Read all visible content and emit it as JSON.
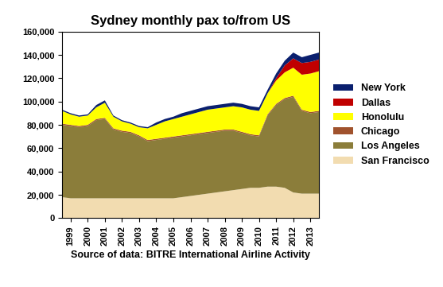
{
  "chart_data": {
    "type": "stacked_area",
    "title": "Sydney monthly pax to/from US",
    "x_label": "Source of data: BITRE International Airline Activity",
    "x": [
      1999,
      1999.5,
      2000,
      2000.5,
      2001,
      2001.5,
      2002,
      2002.5,
      2003,
      2003.5,
      2004,
      2004.5,
      2005,
      2005.5,
      2006,
      2006.5,
      2007,
      2007.5,
      2008,
      2008.5,
      2009,
      2009.5,
      2010,
      2010.5,
      2011,
      2011.5,
      2012,
      2012.5,
      2013,
      2013.5,
      2014
    ],
    "series": [
      {
        "name": "San Francisco",
        "color": "#f2dcb0",
        "values": [
          18000,
          17000,
          17000,
          17000,
          17000,
          17000,
          17000,
          17000,
          17000,
          17000,
          17000,
          17000,
          17000,
          17000,
          18000,
          19000,
          20000,
          21000,
          22000,
          23000,
          24000,
          25000,
          26000,
          26000,
          27000,
          27000,
          26000,
          22000,
          21000,
          21000,
          21000
        ]
      },
      {
        "name": "Los Angeles",
        "color": "#8b7d3a",
        "values": [
          62000,
          62000,
          61000,
          62000,
          67000,
          68000,
          59000,
          57000,
          56000,
          53000,
          49000,
          50000,
          51000,
          52000,
          52000,
          52000,
          52000,
          52000,
          52000,
          52000,
          51000,
          48000,
          45000,
          44000,
          61000,
          70000,
          76000,
          82000,
          71000,
          69000,
          70000
        ]
      },
      {
        "name": "Chicago",
        "color": "#a0522d",
        "values": [
          1000,
          1000,
          1000,
          1000,
          1000,
          1000,
          1000,
          1000,
          1000,
          1000,
          1000,
          1000,
          1000,
          1000,
          1000,
          1000,
          1000,
          1000,
          1000,
          1000,
          1000,
          1000,
          1000,
          1000,
          1000,
          1000,
          1000,
          1000,
          1000,
          1000,
          1000
        ]
      },
      {
        "name": "Honolulu",
        "color": "#ffff00",
        "values": [
          11000,
          9000,
          8000,
          8000,
          10000,
          13000,
          10000,
          8000,
          7000,
          7000,
          10000,
          12000,
          14000,
          15000,
          16000,
          17000,
          18000,
          19000,
          19000,
          19000,
          20000,
          21000,
          21000,
          21000,
          18000,
          20000,
          22000,
          24000,
          30000,
          33000,
          34000
        ]
      },
      {
        "name": "Dallas",
        "color": "#c00000",
        "values": [
          0,
          0,
          0,
          0,
          0,
          0,
          0,
          0,
          0,
          0,
          0,
          0,
          0,
          0,
          0,
          0,
          0,
          0,
          0,
          0,
          0,
          0,
          0,
          0,
          0,
          2000,
          6000,
          8000,
          10000,
          10000,
          10000
        ]
      },
      {
        "name": "New York",
        "color": "#0a1f6e",
        "values": [
          1000,
          1000,
          1000,
          1000,
          2000,
          2000,
          1000,
          1000,
          1000,
          1000,
          1000,
          2000,
          2000,
          2000,
          3000,
          3000,
          3000,
          3000,
          3000,
          3000,
          3000,
          3000,
          3000,
          3000,
          3000,
          4000,
          4000,
          5000,
          5000,
          6000,
          6000
        ]
      }
    ],
    "xlim": [
      1999,
      2014
    ],
    "xticks": [
      {
        "value": 1999.5,
        "label": "1999"
      },
      {
        "value": 2000.5,
        "label": "2000"
      },
      {
        "value": 2001.5,
        "label": "2001"
      },
      {
        "value": 2002.5,
        "label": "2002"
      },
      {
        "value": 2003.5,
        "label": "2003"
      },
      {
        "value": 2004.5,
        "label": "2004"
      },
      {
        "value": 2005.5,
        "label": "2005"
      },
      {
        "value": 2006.5,
        "label": "2006"
      },
      {
        "value": 2007.5,
        "label": "2007"
      },
      {
        "value": 2008.5,
        "label": "2008"
      },
      {
        "value": 2009.5,
        "label": "2009"
      },
      {
        "value": 2010.5,
        "label": "2010"
      },
      {
        "value": 2011.5,
        "label": "2011"
      },
      {
        "value": 2012.5,
        "label": "2012"
      },
      {
        "value": 2013.5,
        "label": "2013"
      }
    ],
    "ylim": [
      0,
      160000
    ],
    "yticks": [
      0,
      {
        "value": 20000,
        "label": "20,000"
      },
      {
        "value": 40000,
        "label": "40,000"
      },
      {
        "value": 60000,
        "label": "60,000"
      },
      {
        "value": 80000,
        "label": "80,000"
      },
      {
        "value": 100000,
        "label": "100,000"
      },
      {
        "value": 120000,
        "label": "120,000"
      },
      {
        "value": 140000,
        "label": "140,000"
      },
      {
        "value": 160000,
        "label": "160,000"
      }
    ],
    "stacked": true,
    "grid": false,
    "legend": "right"
  }
}
